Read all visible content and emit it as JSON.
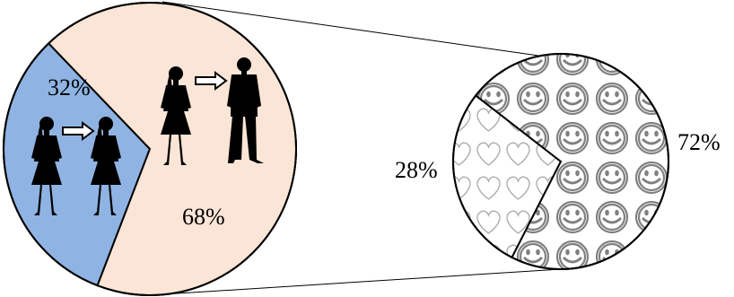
{
  "chart_data": [
    {
      "type": "pie",
      "categories": [
        "",
        ""
      ],
      "values": [
        32,
        68
      ],
      "data_labels": [
        "32%",
        "68%"
      ],
      "colors": [
        "#8fb4e3",
        "#fbe5d6"
      ],
      "icons": [
        "woman-to-woman-silhouettes",
        "woman-to-man-silhouettes"
      ]
    },
    {
      "type": "pie",
      "categories": [
        "",
        ""
      ],
      "values": [
        28,
        72
      ],
      "data_labels": [
        "28%",
        "72%"
      ],
      "patterns": [
        "hearts",
        "smiley-faces"
      ]
    }
  ]
}
